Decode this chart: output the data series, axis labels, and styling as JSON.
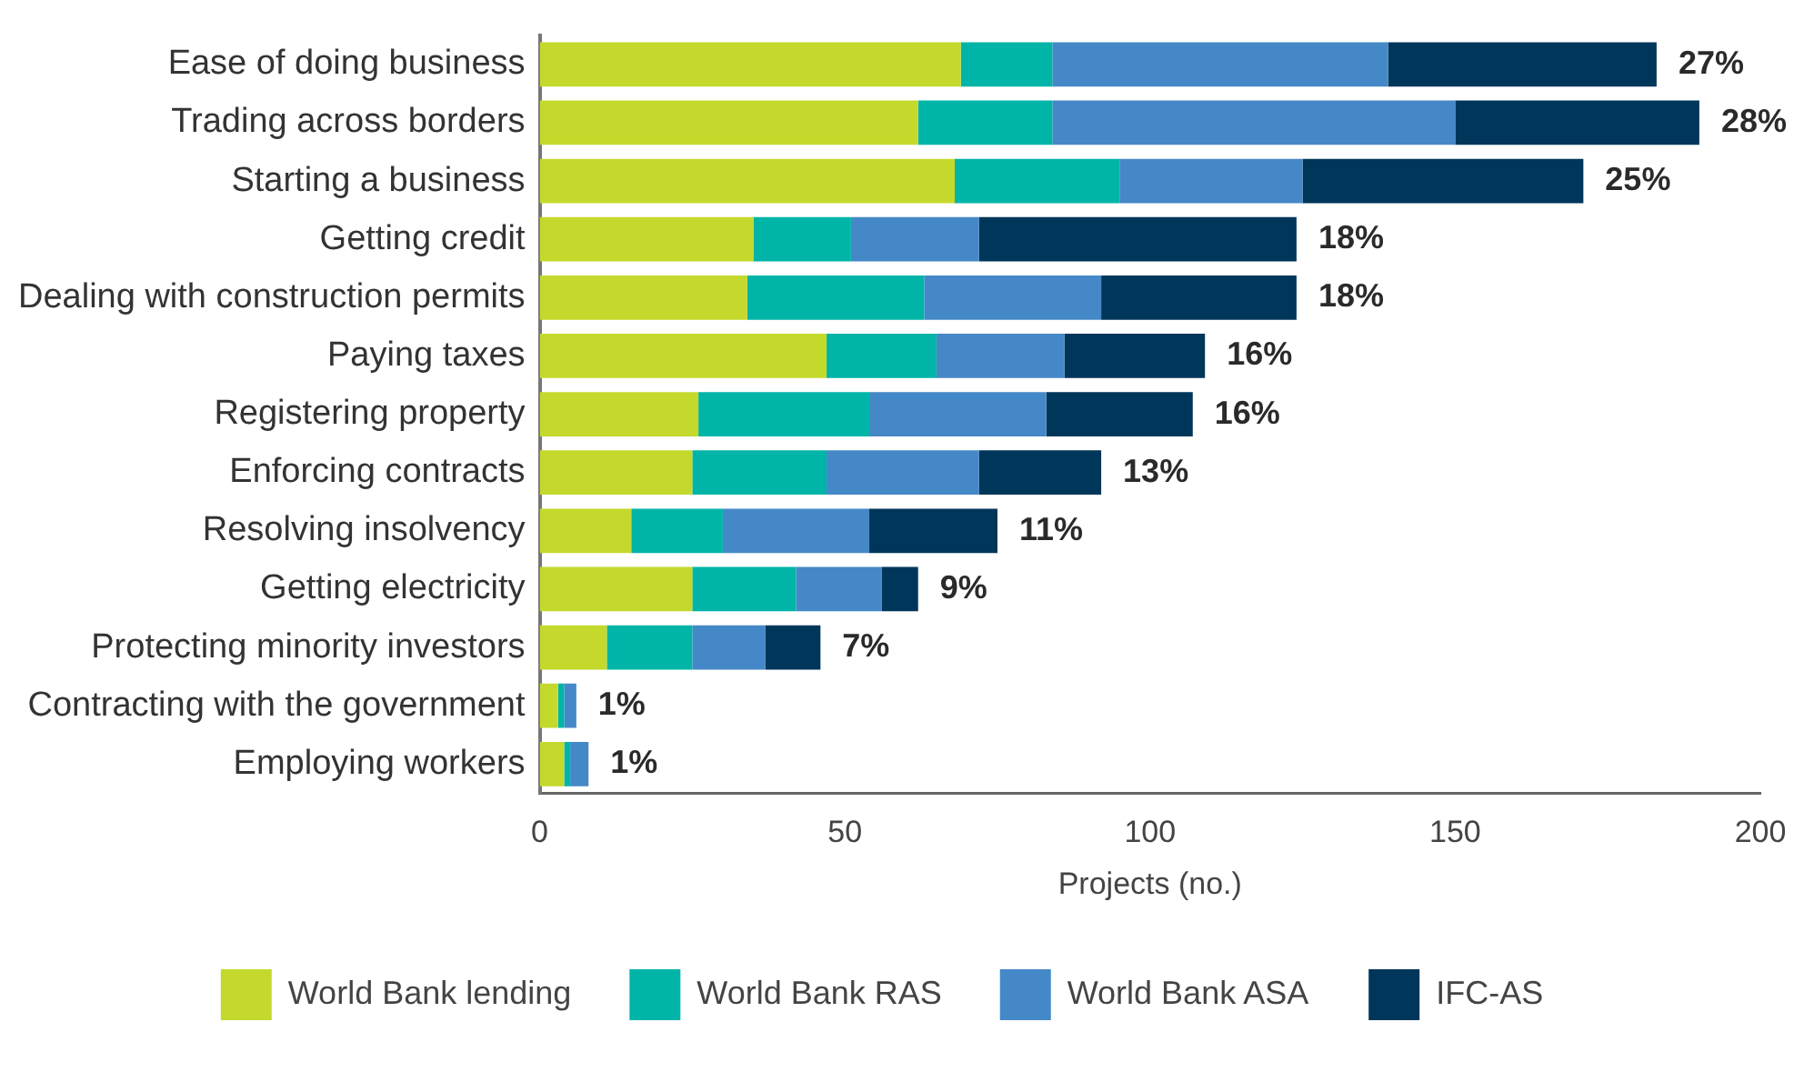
{
  "chart_data": {
    "type": "bar",
    "orientation": "horizontal",
    "stacked": true,
    "xlabel": "Projects (no.)",
    "categories": [
      "Ease of doing business",
      "Trading across borders",
      "Starting a business",
      "Getting credit",
      "Dealing with construction permits",
      "Paying taxes",
      "Registering property",
      "Enforcing contracts",
      "Resolving insolvency",
      "Getting electricity",
      "Protecting minority investors",
      "Contracting with the government",
      "Employing workers"
    ],
    "series": [
      {
        "name": "World Bank lending",
        "color": "#c5d92d",
        "values": [
          69,
          62,
          68,
          35,
          34,
          47,
          26,
          25,
          15,
          25,
          11,
          3,
          4
        ]
      },
      {
        "name": "World Bank RAS",
        "color": "#00b5a8",
        "values": [
          15,
          22,
          27,
          16,
          29,
          18,
          28,
          22,
          15,
          17,
          14,
          1,
          1
        ]
      },
      {
        "name": "World Bank ASA",
        "color": "#4588c7",
        "values": [
          55,
          66,
          30,
          21,
          29,
          21,
          29,
          25,
          24,
          14,
          12,
          2,
          3
        ]
      },
      {
        "name": "IFC-AS",
        "color": "#00365a",
        "values": [
          44,
          40,
          46,
          52,
          32,
          23,
          24,
          20,
          21,
          6,
          9,
          0,
          0
        ]
      }
    ],
    "xlim": [
      0,
      200
    ],
    "xticks": [
      0,
      50,
      100,
      150,
      200
    ],
    "grid": false,
    "legend": "bottom",
    "annotations": [
      {
        "text": "27%",
        "x": 183,
        "y": "Ease of doing business"
      },
      {
        "text": "28%",
        "x": 190,
        "y": "Trading across borders"
      },
      {
        "text": "25%",
        "x": 171,
        "y": "Starting a business"
      },
      {
        "text": "18%",
        "x": 124,
        "y": "Getting credit"
      },
      {
        "text": "18%",
        "x": 124,
        "y": "Dealing with construction permits"
      },
      {
        "text": "16%",
        "x": 109,
        "y": "Paying taxes"
      },
      {
        "text": "16%",
        "x": 107,
        "y": "Registering property"
      },
      {
        "text": "13%",
        "x": 92,
        "y": "Enforcing contracts"
      },
      {
        "text": "11%",
        "x": 75,
        "y": "Resolving insolvency"
      },
      {
        "text": "9%",
        "x": 62,
        "y": "Getting electricity"
      },
      {
        "text": "7%",
        "x": 46,
        "y": "Protecting minority investors"
      },
      {
        "text": "1%",
        "x": 6,
        "y": "Contracting with the government"
      },
      {
        "text": "1%",
        "x": 8,
        "y": "Employing workers"
      }
    ]
  }
}
